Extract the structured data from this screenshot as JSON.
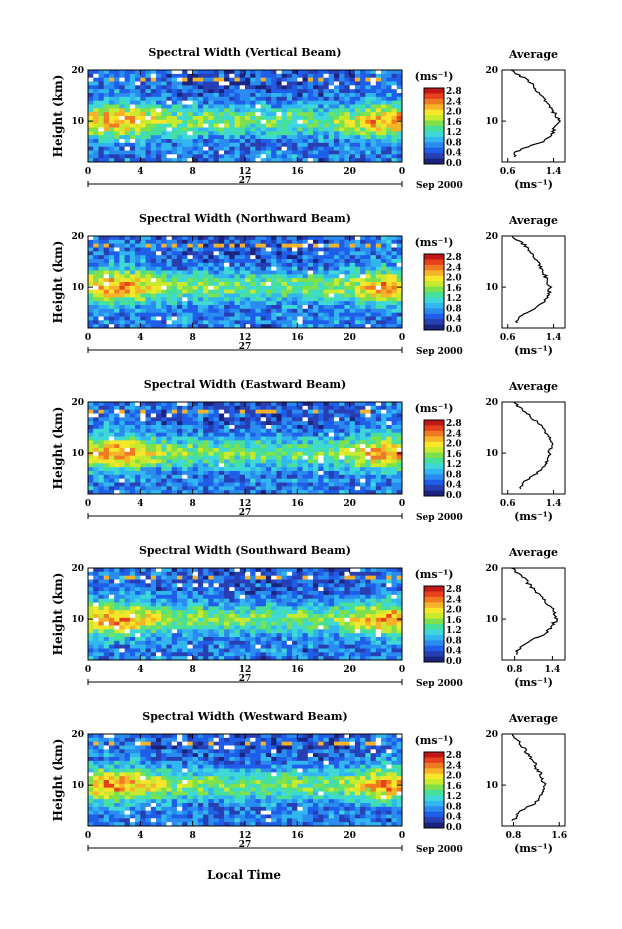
{
  "figure": {
    "xlabel": "Local Time"
  },
  "chart_data": [
    {
      "type": "heatmap",
      "title": "Spectral Width (Vertical Beam)",
      "ylabel": "Height (km)",
      "xticks": [
        "0",
        "4",
        "8",
        "12",
        "16",
        "20",
        "0"
      ],
      "yticks": [
        "10",
        "20"
      ],
      "xlim": [
        0,
        24
      ],
      "ylim": [
        2,
        20
      ],
      "date_marker": "27",
      "date_label": "Sep 2000",
      "colorbar": {
        "unit": "(ms⁻¹)",
        "ticks": [
          "2.8",
          "2.4",
          "2.0",
          "1.6",
          "1.2",
          "0.8",
          "0.4",
          "0.0"
        ]
      },
      "profile": {
        "title": "Average",
        "xlabel": "(ms⁻¹)",
        "xticks": [
          "0.6",
          "1.4"
        ],
        "yticks": [
          "10",
          "20"
        ],
        "xlim": [
          0.5,
          1.6
        ],
        "ylim": [
          2,
          20
        ],
        "heights": [
          3,
          4,
          5,
          6,
          7,
          8,
          9,
          10,
          11,
          12,
          13,
          14,
          15,
          16,
          17,
          18,
          19,
          20
        ],
        "values": [
          0.7,
          0.75,
          0.95,
          1.2,
          1.35,
          1.4,
          1.43,
          1.5,
          1.46,
          1.38,
          1.32,
          1.25,
          1.18,
          1.1,
          1.05,
          0.95,
          0.8,
          0.65
        ]
      }
    },
    {
      "type": "heatmap",
      "title": "Spectral Width (Northward Beam)",
      "ylabel": "Height (km)",
      "xticks": [
        "0",
        "4",
        "8",
        "12",
        "16",
        "20",
        "0"
      ],
      "yticks": [
        "10",
        "20"
      ],
      "xlim": [
        0,
        24
      ],
      "ylim": [
        2,
        20
      ],
      "date_marker": "27",
      "date_label": "Sep 2000",
      "colorbar": {
        "unit": "(ms⁻¹)",
        "ticks": [
          "2.8",
          "2.4",
          "2.0",
          "1.6",
          "1.2",
          "0.8",
          "0.4",
          "0.0"
        ]
      },
      "profile": {
        "title": "Average",
        "xlabel": "(ms⁻¹)",
        "xticks": [
          "0.6",
          "1.4"
        ],
        "yticks": [
          "10",
          "20"
        ],
        "xlim": [
          0.5,
          1.6
        ],
        "ylim": [
          2,
          20
        ],
        "heights": [
          3,
          4,
          5,
          6,
          7,
          8,
          9,
          10,
          11,
          12,
          13,
          14,
          15,
          16,
          17,
          18,
          19,
          20
        ],
        "values": [
          0.75,
          0.8,
          0.95,
          1.1,
          1.2,
          1.28,
          1.32,
          1.35,
          1.3,
          1.26,
          1.22,
          1.18,
          1.12,
          1.05,
          1.0,
          0.92,
          0.8,
          0.68
        ]
      }
    },
    {
      "type": "heatmap",
      "title": "Spectral Width (Eastward Beam)",
      "ylabel": "Height (km)",
      "xticks": [
        "0",
        "4",
        "8",
        "12",
        "16",
        "20",
        "0"
      ],
      "yticks": [
        "10",
        "20"
      ],
      "xlim": [
        0,
        24
      ],
      "ylim": [
        2,
        20
      ],
      "date_marker": "27",
      "date_label": "Sep 2000",
      "colorbar": {
        "unit": "(ms⁻¹)",
        "ticks": [
          "2.8",
          "2.4",
          "2.0",
          "1.6",
          "1.2",
          "0.8",
          "0.4",
          "0.0"
        ]
      },
      "profile": {
        "title": "Average",
        "xlabel": "(ms⁻¹)",
        "xticks": [
          "0.6",
          "1.4"
        ],
        "yticks": [
          "10",
          "20"
        ],
        "xlim": [
          0.5,
          1.6
        ],
        "ylim": [
          2,
          20
        ],
        "heights": [
          3,
          4,
          5,
          6,
          7,
          8,
          9,
          10,
          11,
          12,
          13,
          14,
          15,
          16,
          17,
          18,
          19,
          20
        ],
        "values": [
          0.8,
          0.85,
          0.95,
          1.1,
          1.2,
          1.28,
          1.3,
          1.32,
          1.36,
          1.38,
          1.33,
          1.28,
          1.2,
          1.12,
          1.02,
          0.92,
          0.8,
          0.7
        ]
      }
    },
    {
      "type": "heatmap",
      "title": "Spectral Width (Southward Beam)",
      "ylabel": "Height (km)",
      "xticks": [
        "0",
        "4",
        "8",
        "12",
        "16",
        "20",
        "0"
      ],
      "yticks": [
        "10",
        "20"
      ],
      "xlim": [
        0,
        24
      ],
      "ylim": [
        2,
        20
      ],
      "date_marker": "27",
      "date_label": "Sep 2000",
      "colorbar": {
        "unit": "(ms⁻¹)",
        "ticks": [
          "2.8",
          "2.4",
          "2.0",
          "1.6",
          "1.2",
          "0.8",
          "0.4",
          "0.0"
        ]
      },
      "profile": {
        "title": "Average",
        "xlabel": "(ms⁻¹)",
        "xticks": [
          "0.8",
          "1.4"
        ],
        "yticks": [
          "10",
          "20"
        ],
        "xlim": [
          0.6,
          1.6
        ],
        "ylim": [
          2,
          20
        ],
        "heights": [
          3,
          4,
          5,
          6,
          7,
          8,
          9,
          10,
          11,
          12,
          13,
          14,
          15,
          16,
          17,
          18,
          19,
          20
        ],
        "values": [
          0.8,
          0.85,
          0.95,
          1.1,
          1.25,
          1.35,
          1.4,
          1.48,
          1.45,
          1.4,
          1.32,
          1.25,
          1.18,
          1.1,
          1.02,
          0.95,
          0.85,
          0.75
        ]
      }
    },
    {
      "type": "heatmap",
      "title": "Spectral Width (Westward Beam)",
      "ylabel": "Height (km)",
      "xticks": [
        "0",
        "4",
        "8",
        "12",
        "16",
        "20",
        "0"
      ],
      "yticks": [
        "10",
        "20"
      ],
      "xlim": [
        0,
        24
      ],
      "ylim": [
        2,
        20
      ],
      "date_marker": "27",
      "date_label": "Sep 2000",
      "colorbar": {
        "unit": "(ms⁻¹)",
        "ticks": [
          "2.8",
          "2.4",
          "2.0",
          "1.6",
          "1.2",
          "0.8",
          "0.4",
          "0.0"
        ]
      },
      "profile": {
        "title": "Average",
        "xlabel": "(ms⁻¹)",
        "xticks": [
          "0.8",
          "1.6"
        ],
        "yticks": [
          "10",
          "20"
        ],
        "xlim": [
          0.6,
          1.7
        ],
        "ylim": [
          2,
          20
        ],
        "heights": [
          3,
          4,
          5,
          6,
          7,
          8,
          9,
          10,
          11,
          12,
          13,
          14,
          15,
          16,
          17,
          18,
          19,
          20
        ],
        "values": [
          0.8,
          0.85,
          0.95,
          1.1,
          1.25,
          1.3,
          1.32,
          1.35,
          1.3,
          1.28,
          1.22,
          1.18,
          1.12,
          1.05,
          1.0,
          0.92,
          0.85,
          0.78
        ]
      }
    }
  ]
}
